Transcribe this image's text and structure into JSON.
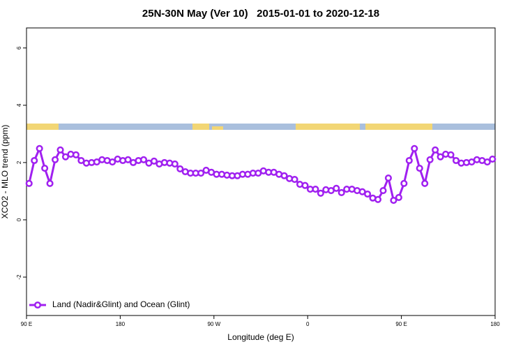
{
  "chart_data": {
    "type": "line",
    "title": "25N-30N May (Ver 10)   2015-01-01 to 2020-12-18",
    "x_label": "Longitude (deg E)",
    "y_label": "XCO2 - MLO trend (ppm)",
    "x": [
      92.5,
      97.5,
      102.5,
      107.5,
      112.5,
      117.5,
      122.5,
      127.5,
      132.5,
      137.5,
      142.5,
      147.5,
      152.5,
      157.5,
      162.5,
      167.5,
      172.5,
      177.5,
      182.5,
      187.5,
      192.5,
      197.5,
      202.5,
      207.5,
      212.5,
      217.5,
      222.5,
      227.5,
      232.5,
      237.5,
      242.5,
      247.5,
      252.5,
      257.5,
      262.5,
      267.5,
      272.5,
      277.5,
      282.5,
      287.5,
      292.5,
      297.5,
      302.5,
      307.5,
      312.5,
      317.5,
      322.5,
      327.5,
      332.5,
      337.5,
      342.5,
      347.5,
      352.5,
      357.5,
      362.5,
      367.5,
      372.5,
      377.5,
      382.5,
      387.5,
      392.5,
      397.5,
      402.5,
      407.5,
      412.5,
      417.5,
      422.5,
      427.5,
      432.5,
      437.5,
      442.5,
      447.5,
      452.5,
      457.5,
      462.5,
      467.5,
      472.5,
      477.5,
      482.5,
      487.5,
      492.5,
      497.5,
      502.5,
      507.5,
      512.5,
      517.5,
      522.5,
      527.5,
      532.5,
      537.5
    ],
    "series": [
      {
        "name": "Land (Nadir&Glint) and Ocean (Glint)",
        "color": "#a020f0",
        "values": [
          1.27,
          2.07,
          2.49,
          1.8,
          1.27,
          2.1,
          2.44,
          2.2,
          2.29,
          2.27,
          2.07,
          1.98,
          2.0,
          2.02,
          2.1,
          2.07,
          2.02,
          2.12,
          2.07,
          2.1,
          2.0,
          2.07,
          2.1,
          1.98,
          2.05,
          1.95,
          2.0,
          1.98,
          1.95,
          1.78,
          1.68,
          1.63,
          1.63,
          1.63,
          1.73,
          1.66,
          1.59,
          1.59,
          1.56,
          1.54,
          1.54,
          1.59,
          1.59,
          1.63,
          1.63,
          1.71,
          1.66,
          1.66,
          1.59,
          1.54,
          1.44,
          1.41,
          1.24,
          1.2,
          1.07,
          1.07,
          0.93,
          1.05,
          1.02,
          1.1,
          0.95,
          1.07,
          1.07,
          1.02,
          0.98,
          0.9,
          0.76,
          0.71,
          1.02,
          1.46,
          0.68,
          0.78,
          1.27,
          2.07,
          2.49,
          1.8,
          1.27,
          2.1,
          2.44,
          2.2,
          2.29,
          2.27,
          2.07,
          1.98,
          2.0,
          2.02,
          2.1,
          2.07,
          2.02,
          2.12
        ]
      }
    ],
    "xlim": [
      90,
      540
    ],
    "xticks": [
      {
        "value": 90,
        "label": "90 E"
      },
      180,
      {
        "value": 270,
        "label": "90 W"
      },
      {
        "value": 360,
        "label": "0"
      },
      {
        "value": 450,
        "label": "90 E"
      },
      {
        "value": 540,
        "label": "180"
      }
    ],
    "ylim": [
      -3.34,
      6.7
    ],
    "yticks": [
      -2,
      0,
      2,
      4,
      6
    ],
    "legend": "bottomleft"
  }
}
